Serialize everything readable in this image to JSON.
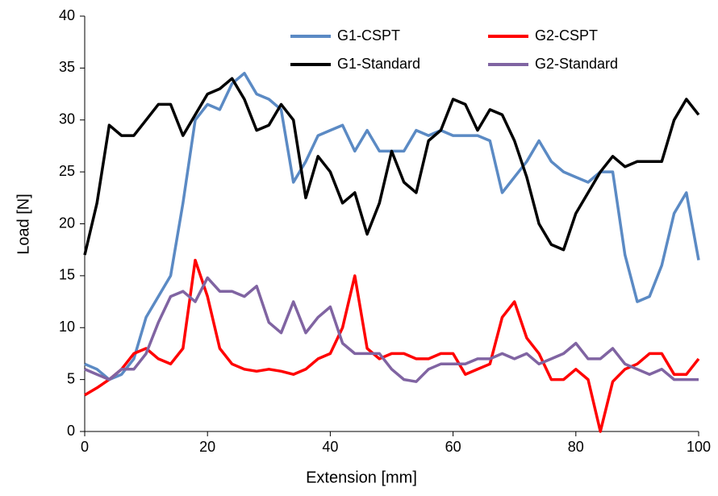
{
  "chart_data": {
    "type": "line",
    "x_label": "Extension [mm]",
    "y_label": "Load [N]",
    "x": [
      0,
      2,
      4,
      6,
      8,
      10,
      12,
      14,
      16,
      18,
      20,
      22,
      24,
      26,
      28,
      30,
      32,
      34,
      36,
      38,
      40,
      42,
      44,
      46,
      48,
      50,
      52,
      54,
      56,
      58,
      60,
      62,
      64,
      66,
      68,
      70,
      72,
      74,
      76,
      78,
      80,
      82,
      84,
      86,
      88,
      90,
      92,
      94,
      96,
      98,
      100
    ],
    "series": [
      {
        "name": "G1-CSPT",
        "color": "#5b8ac4",
        "values": [
          6.5,
          6,
          5,
          5.5,
          7,
          11,
          13,
          15,
          22,
          30,
          31.5,
          31,
          33.5,
          34.5,
          32.5,
          32,
          31,
          24,
          26,
          28.5,
          29,
          29.5,
          27,
          29,
          27,
          27,
          27,
          29,
          28.5,
          29,
          28.5,
          28.5,
          28.5,
          28,
          23,
          24.5,
          26,
          28,
          26,
          25,
          24.5,
          24,
          25,
          25,
          17,
          12.5,
          13,
          16,
          21,
          23,
          16.5
        ]
      },
      {
        "name": "G2-CSPT",
        "color": "#ff0000",
        "values": [
          3.5,
          4.2,
          5,
          6,
          7.5,
          8,
          7,
          6.5,
          8,
          16.5,
          13,
          8,
          6.5,
          6,
          5.8,
          6,
          5.8,
          5.5,
          6,
          7,
          7.5,
          10,
          15,
          8,
          7,
          7.5,
          7.5,
          7,
          7,
          7.5,
          7.5,
          5.5,
          6,
          6.5,
          11,
          12.5,
          9,
          7.5,
          5,
          5,
          6,
          5,
          0,
          4.8,
          6,
          6.5,
          7.5,
          7.5,
          5.5,
          5.5,
          7
        ]
      },
      {
        "name": "G1-Standard",
        "color": "#000000",
        "values": [
          17,
          22,
          29.5,
          28.5,
          28.5,
          30,
          31.5,
          31.5,
          28.5,
          30.5,
          32.5,
          33,
          34,
          32,
          29,
          29.5,
          31.5,
          30,
          22.5,
          26.5,
          25,
          22,
          23,
          19,
          22,
          27,
          24,
          23,
          28,
          29,
          32,
          31.5,
          29,
          31,
          30.5,
          28,
          24.5,
          20,
          18,
          17.5,
          21,
          23,
          25,
          26.5,
          25.5,
          26,
          26,
          26,
          30,
          32,
          30.5
        ]
      },
      {
        "name": "G2-Standard",
        "color": "#8064a2",
        "values": [
          6,
          5.5,
          5,
          6,
          6,
          7.5,
          10.5,
          13,
          13.5,
          12.5,
          14.8,
          13.5,
          13.5,
          13,
          14,
          10.5,
          9.5,
          12.5,
          9.5,
          11,
          12,
          8.5,
          7.5,
          7.5,
          7.5,
          6,
          5,
          4.8,
          6,
          6.5,
          6.5,
          6.5,
          7,
          7,
          7.5,
          7,
          7.5,
          6.5,
          7,
          7.5,
          8.5,
          7,
          7,
          8,
          6.5,
          6,
          5.5,
          6,
          5,
          5,
          5
        ]
      }
    ],
    "xlim": [
      0,
      100
    ],
    "xticks": [
      0,
      20,
      40,
      60,
      80,
      100
    ],
    "ylim": [
      0,
      40
    ],
    "yticks": [
      0,
      5,
      10,
      15,
      20,
      25,
      30,
      35,
      40
    ],
    "grid": false
  }
}
